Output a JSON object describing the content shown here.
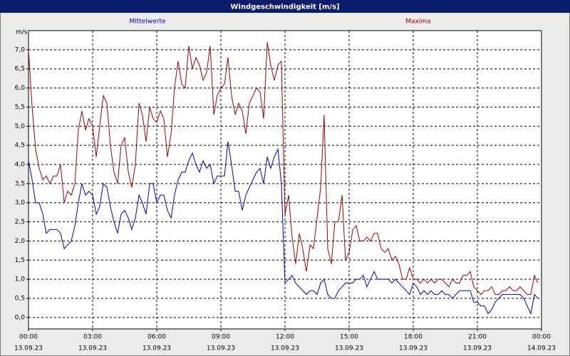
{
  "chart_data": {
    "type": "line",
    "title": "Windgeschwindigkeit [m/s]",
    "ylabel": "m/s",
    "xlim": [
      0,
      24
    ],
    "xticks": [
      {
        "value": 0,
        "label": "00:00"
      },
      {
        "value": 3,
        "label": "03:00"
      },
      {
        "value": 6,
        "label": "06:00"
      },
      {
        "value": 9,
        "label": "09:00"
      },
      {
        "value": 12,
        "label": "12:00"
      },
      {
        "value": 15,
        "label": "15:00"
      },
      {
        "value": 18,
        "label": "18:00"
      },
      {
        "value": 21,
        "label": "21:00"
      },
      {
        "value": 24,
        "label": "00:00"
      }
    ],
    "xtick_dates": [
      "13.09.23",
      "13.09.23",
      "13.09.23",
      "13.09.23",
      "13.09.23",
      "13.09.23",
      "13.09.23",
      "13.09.23",
      "14.09.23"
    ],
    "ylim": [
      -0.3,
      7.5
    ],
    "yticks": [
      {
        "value": 0,
        "label": "0,0"
      },
      {
        "value": 0.5,
        "label": "0,5"
      },
      {
        "value": 1,
        "label": "1,0"
      },
      {
        "value": 1.5,
        "label": "1,5"
      },
      {
        "value": 2,
        "label": "2,0"
      },
      {
        "value": 2.5,
        "label": "2,5"
      },
      {
        "value": 3,
        "label": "3,0"
      },
      {
        "value": 3.5,
        "label": "3,5"
      },
      {
        "value": 4,
        "label": "4,0"
      },
      {
        "value": 4.5,
        "label": "4,5"
      },
      {
        "value": 5,
        "label": "5,0"
      },
      {
        "value": 5.5,
        "label": "5,5"
      },
      {
        "value": 6,
        "label": "6,0"
      },
      {
        "value": 6.5,
        "label": "6,5"
      },
      {
        "value": 7,
        "label": "7,0"
      }
    ],
    "grid": true,
    "x": [
      0,
      0.17,
      0.33,
      0.5,
      0.67,
      0.83,
      1,
      1.17,
      1.33,
      1.5,
      1.67,
      1.83,
      2,
      2.17,
      2.33,
      2.5,
      2.67,
      2.83,
      3,
      3.17,
      3.33,
      3.5,
      3.67,
      3.83,
      4,
      4.17,
      4.33,
      4.5,
      4.67,
      4.83,
      5,
      5.17,
      5.33,
      5.5,
      5.67,
      5.83,
      6,
      6.17,
      6.33,
      6.5,
      6.67,
      6.83,
      7,
      7.17,
      7.33,
      7.5,
      7.67,
      7.83,
      8,
      8.17,
      8.33,
      8.5,
      8.67,
      8.83,
      9,
      9.17,
      9.33,
      9.5,
      9.67,
      9.83,
      10,
      10.17,
      10.33,
      10.5,
      10.67,
      10.83,
      11,
      11.17,
      11.33,
      11.5,
      11.67,
      11.83,
      12,
      12.17,
      12.33,
      12.5,
      12.67,
      12.83,
      13,
      13.17,
      13.33,
      13.5,
      13.67,
      13.83,
      14,
      14.17,
      14.33,
      14.5,
      14.67,
      14.83,
      15,
      15.17,
      15.33,
      15.5,
      15.67,
      15.83,
      16,
      16.17,
      16.33,
      16.5,
      16.67,
      16.83,
      17,
      17.17,
      17.33,
      17.5,
      17.67,
      17.83,
      18,
      18.17,
      18.33,
      18.5,
      18.67,
      18.83,
      19,
      19.17,
      19.33,
      19.5,
      19.67,
      19.83,
      20,
      20.17,
      20.33,
      20.5,
      20.67,
      20.83,
      21,
      21.17,
      21.33,
      21.5,
      21.67,
      21.83,
      22,
      22.17,
      22.33,
      22.5,
      22.67,
      22.83,
      23,
      23.17,
      23.33,
      23.5,
      23.67,
      23.83
    ],
    "series": [
      {
        "name": "Mittelwerte",
        "color": "#0000c0",
        "values": [
          4.1,
          3.6,
          3.0,
          3.0,
          2.7,
          2.2,
          2.3,
          2.3,
          2.3,
          2.2,
          1.8,
          1.9,
          2.0,
          2.4,
          3.0,
          3.5,
          3.2,
          3.3,
          3.2,
          2.7,
          2.9,
          3.5,
          3.4,
          2.9,
          2.5,
          2.2,
          2.7,
          2.8,
          2.6,
          2.3,
          2.6,
          3.2,
          3.0,
          2.7,
          3.5,
          3.5,
          3.0,
          3.2,
          3.2,
          2.8,
          2.6,
          3.2,
          3.6,
          3.8,
          3.8,
          4.1,
          4.3,
          4.0,
          3.8,
          4.1,
          3.9,
          4.0,
          3.5,
          3.7,
          3.7,
          3.7,
          4.6,
          4.0,
          3.3,
          3.3,
          2.8,
          3.2,
          3.4,
          3.6,
          3.8,
          3.9,
          3.5,
          4.2,
          3.9,
          4.2,
          4.4,
          3.5,
          0.9,
          1.0,
          1.1,
          0.9,
          0.8,
          0.7,
          0.6,
          0.7,
          0.7,
          0.6,
          0.9,
          1.0,
          0.6,
          0.5,
          0.5,
          0.7,
          0.8,
          0.9,
          0.9,
          0.9,
          1.0,
          1.0,
          1.1,
          0.8,
          1.0,
          1.2,
          1.0,
          1.0,
          1.0,
          1.0,
          0.9,
          1.0,
          0.9,
          0.8,
          0.7,
          0.6,
          0.9,
          0.8,
          0.6,
          0.7,
          0.6,
          0.7,
          0.6,
          0.6,
          0.7,
          0.6,
          0.6,
          0.5,
          0.6,
          0.7,
          0.7,
          0.7,
          0.7,
          0.4,
          0.4,
          0.3,
          0.3,
          0.1,
          0.2,
          0.4,
          0.5,
          0.6,
          0.6,
          0.6,
          0.6,
          0.6,
          0.6,
          0.5,
          0.3,
          0.1,
          0.6,
          0.5
        ]
      },
      {
        "name": "Maxima",
        "color": "#a00000",
        "values": [
          7.0,
          5.5,
          4.4,
          3.9,
          3.6,
          3.7,
          3.5,
          3.7,
          3.7,
          4.0,
          3.0,
          3.3,
          3.2,
          3.5,
          4.9,
          5.4,
          4.9,
          5.2,
          5.0,
          4.2,
          5.0,
          5.8,
          5.6,
          4.5,
          3.8,
          3.5,
          4.5,
          4.7,
          3.8,
          3.4,
          4.0,
          5.6,
          5.3,
          4.6,
          5.5,
          5.2,
          5.1,
          5.4,
          5.2,
          4.2,
          4.8,
          6.0,
          6.7,
          6.1,
          6.0,
          7.1,
          6.5,
          6.8,
          6.6,
          6.2,
          6.4,
          7.1,
          5.3,
          5.8,
          6.0,
          6.1,
          6.8,
          5.8,
          5.3,
          5.6,
          5.4,
          4.8,
          5.6,
          5.8,
          6.0,
          5.9,
          5.2,
          7.2,
          6.6,
          6.2,
          6.6,
          6.7,
          2.7,
          3.2,
          2.1,
          1.4,
          2.2,
          1.8,
          1.2,
          1.9,
          1.8,
          2.6,
          3.4,
          5.3,
          1.8,
          1.4,
          2.5,
          2.5,
          3.2,
          1.5,
          1.7,
          2.3,
          2.4,
          2.0,
          2.0,
          2.1,
          2.0,
          2.2,
          2.2,
          1.8,
          1.7,
          1.8,
          1.5,
          1.6,
          1.4,
          1.0,
          1.0,
          1.3,
          1.0,
          1.0,
          0.9,
          1.0,
          0.9,
          1.0,
          0.9,
          1.0,
          1.0,
          0.9,
          0.8,
          1.0,
          0.9,
          0.9,
          1.1,
          1.1,
          1.2,
          0.8,
          0.7,
          0.6,
          0.7,
          0.7,
          0.8,
          0.6,
          0.6,
          0.7,
          0.7,
          0.8,
          0.7,
          0.7,
          0.8,
          0.7,
          0.6,
          0.6,
          1.1,
          0.9
        ]
      }
    ]
  }
}
